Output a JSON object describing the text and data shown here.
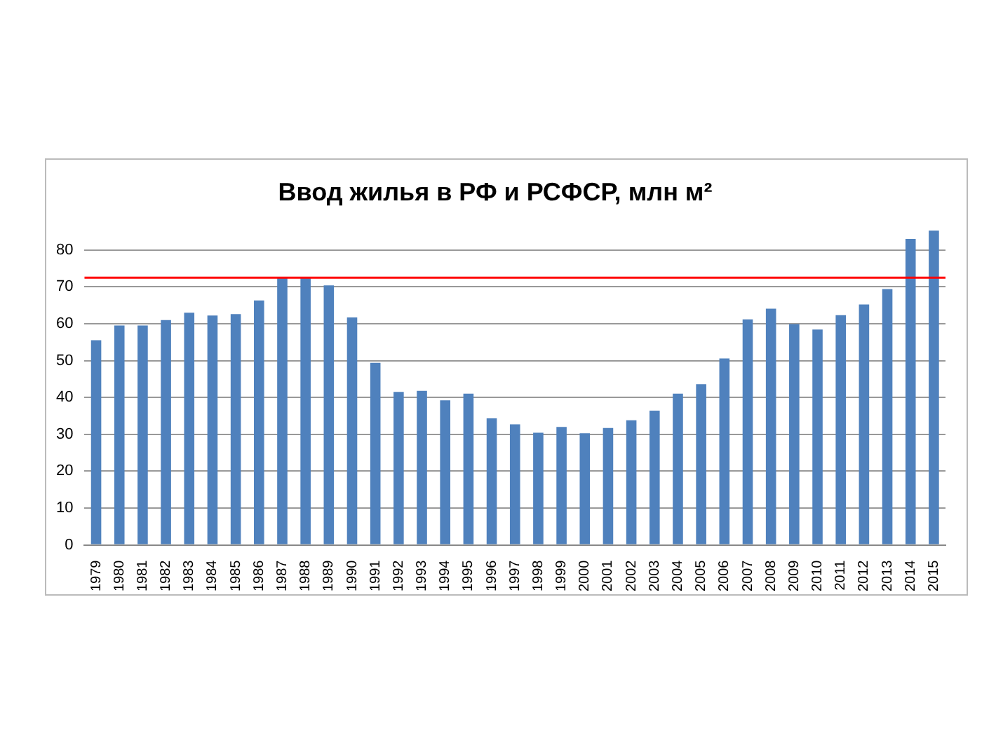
{
  "chart_data": {
    "type": "bar",
    "title": "Ввод жилья в РФ и РСФСР, млн м²",
    "categories": [
      "1979",
      "1980",
      "1981",
      "1982",
      "1983",
      "1984",
      "1985",
      "1986",
      "1987",
      "1988",
      "1989",
      "1990",
      "1991",
      "1992",
      "1993",
      "1994",
      "1995",
      "1996",
      "1997",
      "1998",
      "1999",
      "2000",
      "2001",
      "2002",
      "2003",
      "2004",
      "2005",
      "2006",
      "2007",
      "2008",
      "2009",
      "2010",
      "2011",
      "2012",
      "2013",
      "2014",
      "2015"
    ],
    "values": [
      55.5,
      59.5,
      59.5,
      61,
      63,
      62.2,
      62.6,
      66.3,
      72.5,
      72.5,
      70.4,
      61.7,
      49.4,
      41.5,
      41.8,
      39.2,
      41,
      34.3,
      32.7,
      30.4,
      32,
      30.3,
      31.7,
      33.8,
      36.4,
      41,
      43.6,
      50.6,
      61.2,
      64.1,
      59.9,
      58.4,
      62.3,
      65.2,
      69.4,
      83,
      85.3
    ],
    "color": "#4f81bd",
    "ylim": [
      0,
      86
    ],
    "yticks": [
      0,
      10,
      20,
      30,
      40,
      50,
      60,
      70,
      80
    ],
    "grid": "y",
    "legend": false,
    "ref_lines": [
      {
        "axis": "y",
        "value": 72.5,
        "label": null,
        "color": "#ff0000"
      }
    ]
  }
}
